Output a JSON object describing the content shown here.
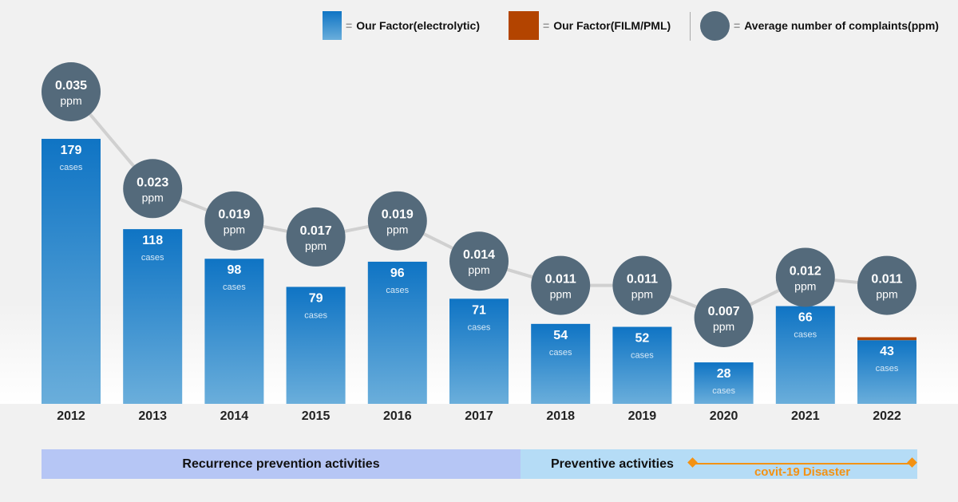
{
  "legend": {
    "electrolytic": "Our Factor(electrolytic)",
    "film": "Our Factor(FILM/PML)",
    "ppm": "Average number of complaints(ppm)",
    "equals": "="
  },
  "colors": {
    "electrolytic_top": "#0f74c4",
    "electrolytic_bottom": "#6aaedb",
    "film": "#b34400",
    "ppm_circle": "#546a7b",
    "line": "#d0d0d0",
    "recurrence_band": "#b6c6f5",
    "preventive_band": "#b5dcf6",
    "covid": "#f39214"
  },
  "chart_data": {
    "type": "bar",
    "categories": [
      "2012",
      "2013",
      "2014",
      "2015",
      "2016",
      "2017",
      "2018",
      "2019",
      "2020",
      "2021",
      "2022"
    ],
    "series": [
      {
        "name": "Our Factor(electrolytic)",
        "values": [
          179,
          118,
          98,
          79,
          96,
          71,
          54,
          52,
          28,
          66,
          43
        ],
        "unit": "cases"
      },
      {
        "name": "Our Factor(FILM/PML)",
        "values": [
          0,
          0,
          0,
          0,
          0,
          0,
          0,
          0,
          0,
          0,
          2
        ]
      },
      {
        "name": "Average number of complaints(ppm)",
        "type": "line",
        "values": [
          0.035,
          0.023,
          0.019,
          0.017,
          0.019,
          0.014,
          0.011,
          0.011,
          0.007,
          0.012,
          0.011
        ],
        "unit": "ppm"
      }
    ],
    "bar_unit_label": "cases",
    "ppm_unit_label": "ppm"
  },
  "bands": {
    "recurrence": "Recurrence prevention activities",
    "preventive": "Preventive activities",
    "covid": "covit-19 Disaster"
  }
}
